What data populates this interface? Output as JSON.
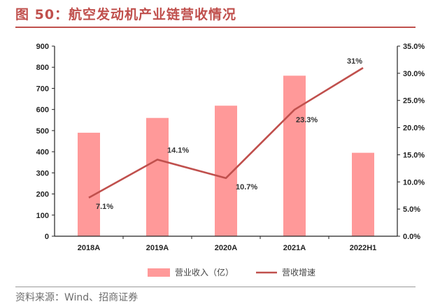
{
  "figure": {
    "title": "图 50：航空发动机产业链营收情况",
    "source": "资料来源：Wind、招商证券"
  },
  "chart_data": {
    "type": "bar",
    "categories": [
      "2018A",
      "2019A",
      "2020A",
      "2021A",
      "2022H1"
    ],
    "series": [
      {
        "name": "营业收入（亿）",
        "type": "bar",
        "axis": "left",
        "values": [
          490,
          560,
          618,
          760,
          395
        ],
        "color": "#ff9999"
      },
      {
        "name": "营收增速",
        "type": "line",
        "axis": "right",
        "values": [
          7.1,
          14.1,
          10.7,
          23.3,
          31
        ],
        "labels": [
          "7.1%",
          "14.1%",
          "10.7%",
          "23.3%",
          "31%"
        ],
        "color": "#c0504d"
      }
    ],
    "y_left": {
      "min": 0,
      "max": 900,
      "ticks": [
        "0",
        "100",
        "200",
        "300",
        "400",
        "500",
        "600",
        "700",
        "800",
        "900"
      ]
    },
    "y_right": {
      "min": 0,
      "max": 35,
      "ticks": [
        "0.0%",
        "5.0%",
        "10.0%",
        "15.0%",
        "20.0%",
        "25.0%",
        "30.0%",
        "35.0%"
      ]
    },
    "grid": false,
    "legend_position": "bottom"
  }
}
